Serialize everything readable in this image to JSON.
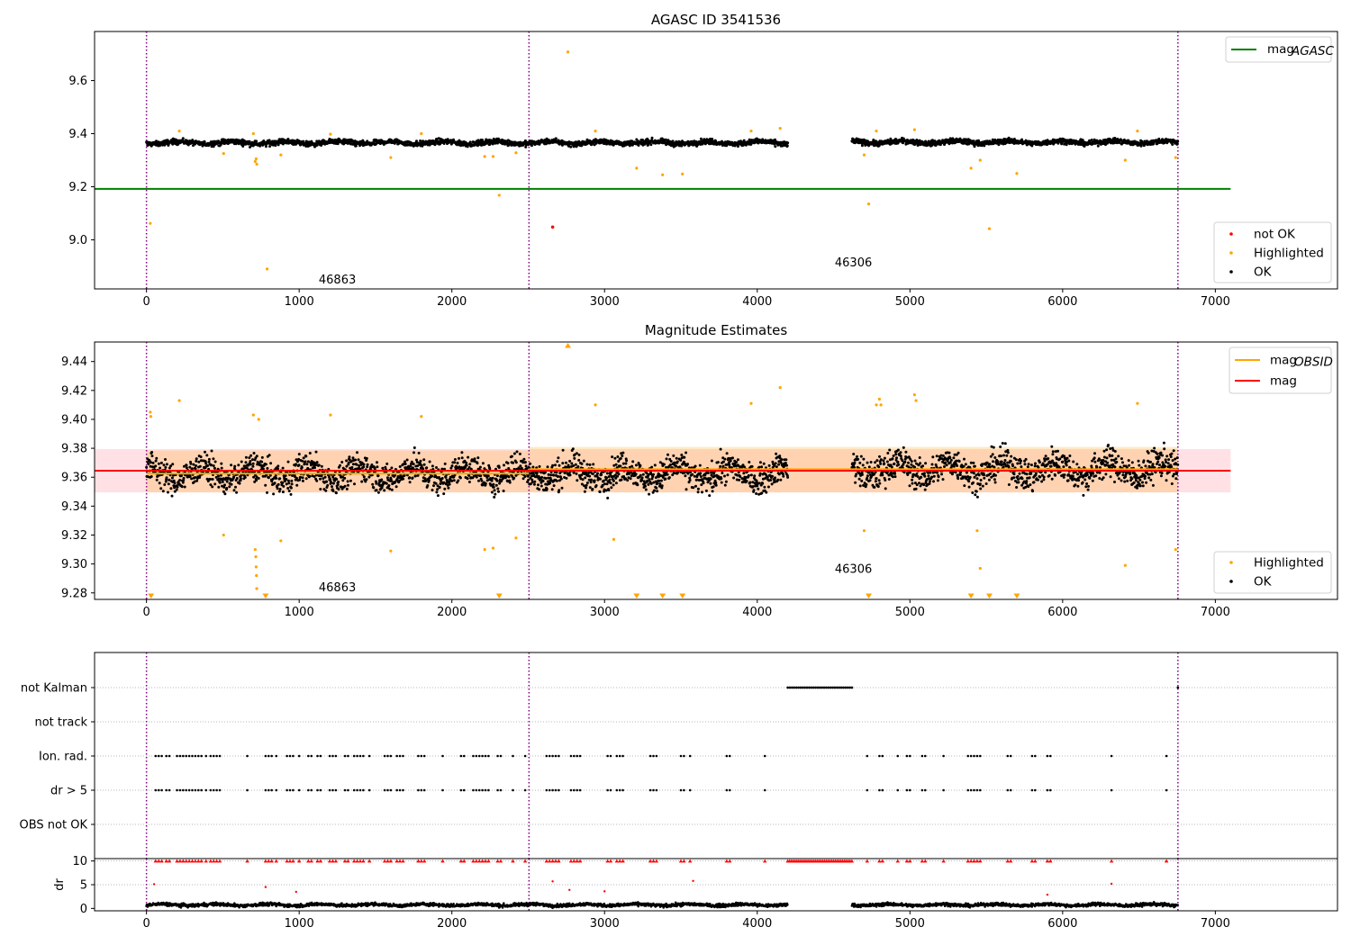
{
  "colors": {
    "ok": "#000000",
    "highlighted": "#ffa500",
    "not_ok": "#ff0000",
    "agasc_line": "#008000",
    "mag_line": "#ff0000",
    "mag_obsid_line": "#ffa500",
    "band_fill": "#ff9aa8",
    "obsid_separator": "#800080",
    "flag_gridline": "#a0a0a0"
  },
  "chart_data": [
    {
      "type": "scatter",
      "title": "AGASC ID 3541536",
      "xlim": [
        -340,
        7800
      ],
      "ylim": [
        8.815,
        9.785
      ],
      "x_ticks": [
        0,
        1000,
        2000,
        3000,
        4000,
        5000,
        6000,
        7000
      ],
      "y_ticks": [
        9.0,
        9.2,
        9.4,
        9.6
      ],
      "obsid_boundaries": [
        0,
        2505,
        6755
      ],
      "obsid_labels": [
        {
          "text": "46863",
          "x": 1250,
          "y": 8.835
        },
        {
          "text": "46306",
          "x": 4630,
          "y": 8.9
        }
      ],
      "agasc_mag": {
        "value": 9.192,
        "x_range": [
          -340,
          7100
        ]
      },
      "legends": {
        "lines": [
          {
            "label": "mag",
            "sub": "AGASC",
            "color": "#008000"
          }
        ],
        "points": [
          {
            "label": "not OK",
            "color": "#ff0000"
          },
          {
            "label": "Highlighted",
            "color": "#ffa500"
          },
          {
            "label": "OK",
            "color": "#000000"
          }
        ]
      },
      "ok_segments": [
        {
          "x": [
            0,
            4200
          ],
          "base": 9.366,
          "spread": 0.013
        },
        {
          "x": [
            4620,
            6755
          ],
          "base": 9.368,
          "spread": 0.013
        }
      ],
      "highlighted": [
        [
          25,
          9.062
        ],
        [
          215,
          9.41
        ],
        [
          505,
          9.325
        ],
        [
          700,
          9.4
        ],
        [
          712,
          9.295
        ],
        [
          718,
          9.305
        ],
        [
          722,
          9.285
        ],
        [
          790,
          8.89
        ],
        [
          880,
          9.32
        ],
        [
          1205,
          9.398
        ],
        [
          1600,
          9.31
        ],
        [
          1800,
          9.4
        ],
        [
          2215,
          9.314
        ],
        [
          2270,
          9.314
        ],
        [
          2310,
          9.168
        ],
        [
          2420,
          9.328
        ],
        [
          2760,
          9.708
        ],
        [
          2940,
          9.41
        ],
        [
          3210,
          9.27
        ],
        [
          3380,
          9.245
        ],
        [
          3510,
          9.248
        ],
        [
          3960,
          9.41
        ],
        [
          4150,
          9.42
        ],
        [
          4700,
          9.32
        ],
        [
          4730,
          9.135
        ],
        [
          4780,
          9.41
        ],
        [
          5030,
          9.415
        ],
        [
          5400,
          9.27
        ],
        [
          5460,
          9.3
        ],
        [
          5520,
          9.042
        ],
        [
          5700,
          9.25
        ],
        [
          6410,
          9.3
        ],
        [
          6490,
          9.41
        ],
        [
          6740,
          9.31
        ]
      ],
      "not_ok": [
        [
          2660,
          9.048
        ]
      ]
    },
    {
      "type": "scatter",
      "title": "Magnitude Estimates",
      "xlim": [
        -340,
        7800
      ],
      "ylim": [
        9.2755,
        9.4535
      ],
      "x_ticks": [
        0,
        1000,
        2000,
        3000,
        4000,
        5000,
        6000,
        7000
      ],
      "y_ticks": [
        9.28,
        9.3,
        9.32,
        9.34,
        9.36,
        9.38,
        9.4,
        9.42,
        9.44
      ],
      "obsid_boundaries": [
        0,
        2505,
        6755
      ],
      "obsid_labels": [
        {
          "text": "46863",
          "x": 1250,
          "y": 9.281
        },
        {
          "text": "46306",
          "x": 4630,
          "y": 9.294
        }
      ],
      "mag": {
        "value": 9.3645,
        "band": [
          9.3495,
          9.3795
        ],
        "x_range": [
          -340,
          7100
        ]
      },
      "mag_obsid": [
        {
          "x_range": [
            0,
            2505
          ],
          "value": 9.3625,
          "band": [
            9.3495,
            9.3785
          ]
        },
        {
          "x_range": [
            2505,
            6755
          ],
          "value": 9.3655,
          "band": [
            9.3495,
            9.381
          ]
        }
      ],
      "legends": {
        "lines": [
          {
            "label": "mag",
            "sub": "OBSID",
            "color": "#ffa500"
          },
          {
            "label": "mag",
            "sub": "",
            "color": "#ff0000"
          }
        ],
        "points": [
          {
            "label": "Highlighted",
            "color": "#ffa500"
          },
          {
            "label": "OK",
            "color": "#000000"
          }
        ]
      },
      "ok_segments": [
        {
          "x": [
            0,
            4200
          ],
          "base": 9.3625,
          "spread": 0.013
        },
        {
          "x": [
            4620,
            6755
          ],
          "base": 9.3655,
          "spread": 0.014
        }
      ],
      "highlighted": [
        [
          25,
          9.405
        ],
        [
          28,
          9.402
        ],
        [
          215,
          9.413
        ],
        [
          505,
          9.32
        ],
        [
          700,
          9.403
        ],
        [
          712,
          9.31
        ],
        [
          716,
          9.305
        ],
        [
          718,
          9.298
        ],
        [
          720,
          9.292
        ],
        [
          722,
          9.283
        ],
        [
          735,
          9.4
        ],
        [
          880,
          9.316
        ],
        [
          1205,
          9.403
        ],
        [
          1600,
          9.309
        ],
        [
          1800,
          9.402
        ],
        [
          2215,
          9.31
        ],
        [
          2270,
          9.311
        ],
        [
          2420,
          9.318
        ],
        [
          2940,
          9.41
        ],
        [
          3060,
          9.317
        ],
        [
          3960,
          9.411
        ],
        [
          4150,
          9.422
        ],
        [
          4700,
          9.323
        ],
        [
          4780,
          9.41
        ],
        [
          4800,
          9.414
        ],
        [
          4810,
          9.41
        ],
        [
          5030,
          9.417
        ],
        [
          5040,
          9.413
        ],
        [
          5440,
          9.323
        ],
        [
          5460,
          9.297
        ],
        [
          6410,
          9.299
        ],
        [
          6490,
          9.411
        ],
        [
          6740,
          9.31
        ]
      ],
      "below_markers": [
        30,
        780,
        2310,
        3210,
        3380,
        3510,
        4730,
        5400,
        5520,
        5700
      ],
      "above_markers": [
        2760
      ]
    },
    {
      "type": "scatter",
      "title": "",
      "xlim": [
        -340,
        7800
      ],
      "flag_rows": [
        "not Kalman",
        "not track",
        "Ion. rad.",
        "dr > 5",
        "OBS not OK"
      ],
      "obsid_boundaries": [
        0,
        2505,
        6755
      ],
      "not_kalman": {
        "x_range": [
          4200,
          4620
        ],
        "extra_x": [
          6755
        ]
      },
      "flag_x": [
        60,
        80,
        100,
        130,
        150,
        200,
        220,
        240,
        260,
        280,
        300,
        320,
        340,
        360,
        390,
        420,
        440,
        460,
        480,
        660,
        780,
        800,
        820,
        850,
        920,
        940,
        960,
        1000,
        1060,
        1080,
        1120,
        1140,
        1200,
        1220,
        1240,
        1300,
        1320,
        1360,
        1380,
        1400,
        1420,
        1460,
        1560,
        1580,
        1600,
        1640,
        1660,
        1680,
        1780,
        1800,
        1820,
        1940,
        2060,
        2080,
        2140,
        2160,
        2180,
        2200,
        2220,
        2240,
        2300,
        2320,
        2400,
        2480,
        2620,
        2640,
        2660,
        2680,
        2700,
        2780,
        2800,
        2820,
        2840,
        3020,
        3040,
        3080,
        3100,
        3120,
        3300,
        3320,
        3340,
        3500,
        3520,
        3560,
        3800,
        3820,
        4050,
        4720,
        4800,
        4820,
        4920,
        4980,
        5000,
        5080,
        5100,
        5220,
        5380,
        5400,
        5420,
        5440,
        5460,
        5640,
        5660,
        5800,
        5820,
        5900,
        5920,
        6320,
        6680
      ],
      "dr": {
        "ylabel": "dr",
        "ylim": [
          -0.5,
          10.5
        ],
        "y_ticks": [
          0,
          5,
          10
        ],
        "clip": 10,
        "ok_segments": [
          {
            "x": [
              0,
              4200
            ],
            "base": 0.75,
            "spread": 0.45
          },
          {
            "x": [
              4620,
              6755
            ],
            "base": 0.75,
            "spread": 0.45
          }
        ],
        "red_points": [
          [
            50,
            5.1
          ],
          [
            780,
            4.5
          ],
          [
            980,
            3.5
          ],
          [
            2660,
            5.7
          ],
          [
            2770,
            3.9
          ],
          [
            3000,
            3.6
          ],
          [
            3580,
            5.8
          ],
          [
            5900,
            2.9
          ],
          [
            6320,
            5.2
          ]
        ]
      }
    }
  ]
}
